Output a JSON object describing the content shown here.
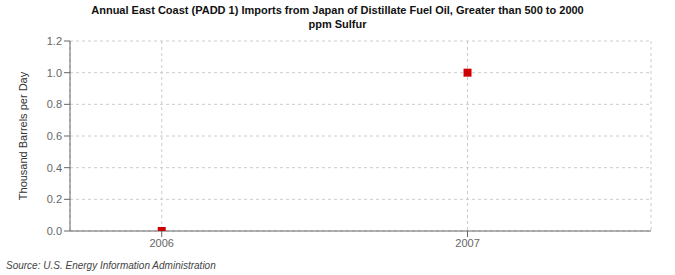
{
  "chart_data": {
    "type": "scatter",
    "title": "Annual East Coast (PADD 1) Imports from Japan of Distillate Fuel Oil, Greater than 500 to 2000\nppm Sulfur",
    "y_label": "Thousand Barrels per Day",
    "annotations": [
      "Source: U.S. Energy Information Administration"
    ],
    "x": [
      2006,
      2007
    ],
    "values": [
      0.0,
      1.0
    ],
    "color": "#cc0000",
    "marker": "square",
    "xlim": [
      2005.7,
      2007.6
    ],
    "xticks": [
      2006,
      2007
    ],
    "ylim": [
      0.0,
      1.2
    ],
    "yticks": [
      {
        "value": 0.0,
        "label": "0.0"
      },
      0.2,
      0.4,
      0.6,
      0.8,
      {
        "value": 1.0,
        "label": "1.0"
      },
      1.2
    ],
    "grid": true
  }
}
